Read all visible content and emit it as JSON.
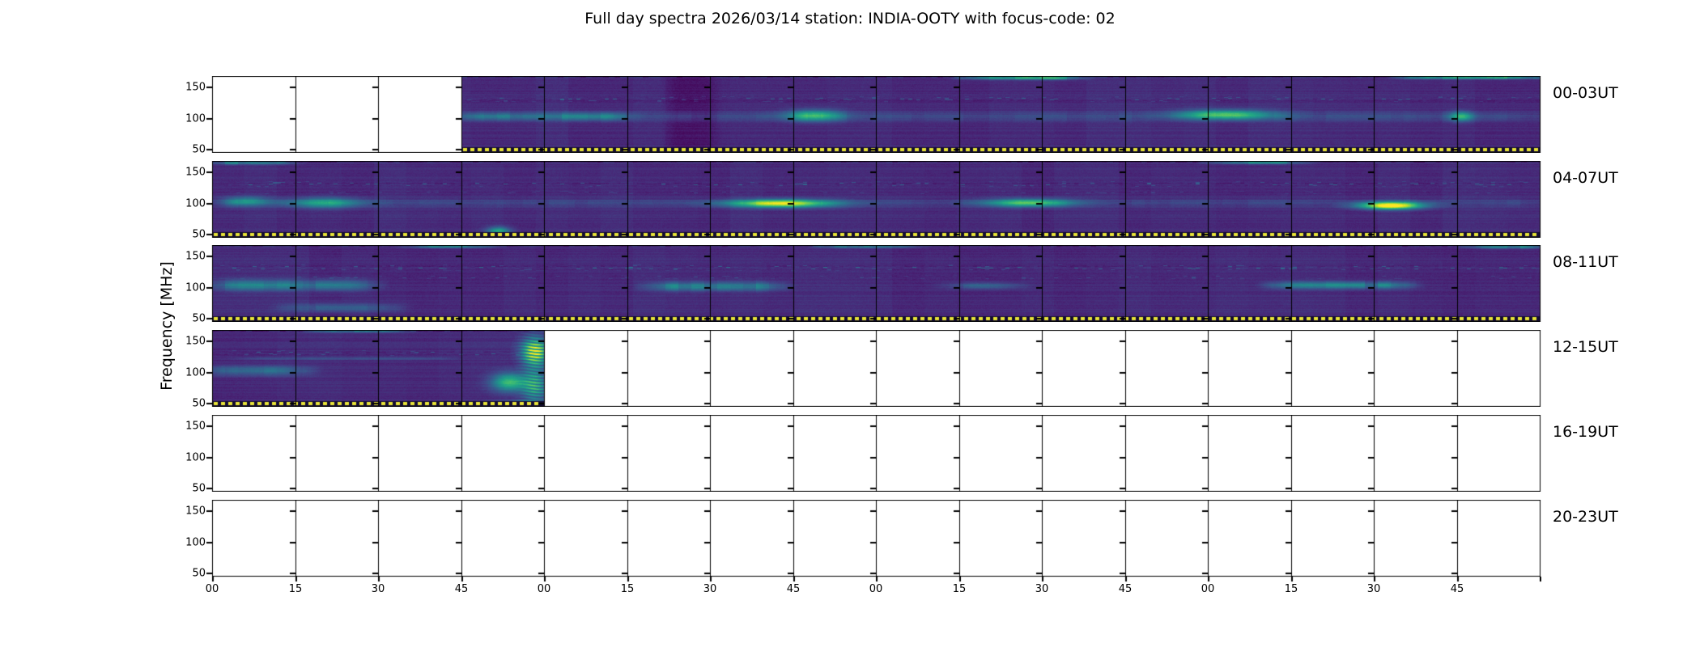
{
  "title": "Full day spectra 2026/03/14 station: INDIA-OOTY with focus-code: 02",
  "chart_data": {
    "type": "heatmap",
    "title": "Full day spectra 2026/03/14 station: INDIA-OOTY with focus-code: 02",
    "ylabel": "Frequency [MHz]",
    "ylim_mhz": [
      45,
      170
    ],
    "ytick_labels": [
      "150",
      "100",
      "50"
    ],
    "xtick_labels": [
      "00",
      "15",
      "30",
      "45",
      "00",
      "15",
      "30",
      "45",
      "00",
      "15",
      "30",
      "45",
      "00",
      "15",
      "30",
      "45"
    ],
    "segments_per_row": 16,
    "segment_minutes": 15,
    "colormap": "viridis",
    "no_data_color": "#ffffff",
    "grid_color": "#000000",
    "marker_line": {
      "style": "dotted",
      "color": "#e8e438",
      "background": "#140d33"
    },
    "rows": [
      {
        "label": "00-03UT",
        "seed": 11,
        "data": [
          3,
          16
        ],
        "features": [
          {
            "t": "hstripes",
            "x": [
              3,
              5
            ],
            "f": [
              45,
              170
            ],
            "a": 0.5
          },
          {
            "t": "dark",
            "x": [
              5.5,
              6.05
            ],
            "f": [
              45,
              170
            ],
            "a": -0.06
          },
          {
            "t": "sline",
            "x": [
              3,
              16
            ],
            "f": [
              126,
              138
            ],
            "a": 0.42
          },
          {
            "t": "band",
            "x": [
              3,
              16
            ],
            "f": [
              92,
              114
            ],
            "a": 0.16
          },
          {
            "t": "band",
            "x": [
              3,
              5
            ],
            "f": [
              95,
              112
            ],
            "a": 0.3
          },
          {
            "t": "blob",
            "x": [
              6.9,
              7.6
            ],
            "f": [
              95,
              115
            ],
            "a": 0.5
          },
          {
            "t": "blob",
            "x": [
              11.6,
              12.8
            ],
            "f": [
              98,
              115
            ],
            "a": 0.55
          },
          {
            "t": "blob",
            "x": [
              14.9,
              15.2
            ],
            "f": [
              95,
              112
            ],
            "a": 0.45
          },
          {
            "t": "band",
            "x": [
              9.1,
              10.4
            ],
            "f": [
              163,
              171
            ],
            "a": 0.75
          },
          {
            "t": "band",
            "x": [
              14.4,
              16
            ],
            "f": [
              164,
              171
            ],
            "a": 0.7
          },
          {
            "t": "hstripes",
            "x": [
              6,
              16
            ],
            "f": [
              45,
              170
            ],
            "a": 0.1
          }
        ]
      },
      {
        "label": "04-07UT",
        "seed": 22,
        "data": [
          0,
          16
        ],
        "features": [
          {
            "t": "sline",
            "x": [
              0,
              16
            ],
            "f": [
              126,
              138
            ],
            "a": 0.45
          },
          {
            "t": "sline",
            "x": [
              0,
              16
            ],
            "f": [
              114,
              122
            ],
            "a": 0.2
          },
          {
            "t": "band",
            "x": [
              0,
              16
            ],
            "f": [
              92,
              110
            ],
            "a": 0.14
          },
          {
            "t": "blob",
            "x": [
              0.1,
              0.7
            ],
            "f": [
              95,
              112
            ],
            "a": 0.35
          },
          {
            "t": "blob",
            "x": [
              0.9,
              1.8
            ],
            "f": [
              92,
              110
            ],
            "a": 0.42
          },
          {
            "t": "blob",
            "x": [
              6.2,
              7.5
            ],
            "f": [
              93,
              107
            ],
            "a": 0.8
          },
          {
            "t": "blob",
            "x": [
              9.3,
              10.4
            ],
            "f": [
              94,
              108
            ],
            "a": 0.55
          },
          {
            "t": "blob",
            "x": [
              13.8,
              14.6
            ],
            "f": [
              90,
              103
            ],
            "a": 0.95
          },
          {
            "t": "vstreak",
            "x": [
              2.5,
              3.6
            ],
            "f": [
              45,
              100
            ],
            "a": 0.3
          },
          {
            "t": "hstripes",
            "x": [
              0,
              16
            ],
            "f": [
              45,
              85
            ],
            "a": 0.1
          },
          {
            "t": "band",
            "x": [
              0,
              0.9
            ],
            "f": [
              163,
              171
            ],
            "a": 0.5
          },
          {
            "t": "band",
            "x": [
              12.1,
              13.1
            ],
            "f": [
              164,
              171
            ],
            "a": 0.5
          },
          {
            "t": "blob",
            "x": [
              3.3,
              3.6
            ],
            "f": [
              45,
              62
            ],
            "a": 0.5
          }
        ]
      },
      {
        "label": "08-11UT",
        "seed": 33,
        "data": [
          0,
          16
        ],
        "features": [
          {
            "t": "sline",
            "x": [
              0,
              16
            ],
            "f": [
              127,
              139
            ],
            "a": 0.5
          },
          {
            "t": "sline",
            "x": [
              0,
              16
            ],
            "f": [
              113,
              121
            ],
            "a": 0.26
          },
          {
            "t": "band",
            "x": [
              0,
              1.9
            ],
            "f": [
              92,
              116
            ],
            "a": 0.4
          },
          {
            "t": "band",
            "x": [
              5.3,
              6.8
            ],
            "f": [
              92,
              112
            ],
            "a": 0.45
          },
          {
            "t": "band",
            "x": [
              12.8,
              14.4
            ],
            "f": [
              96,
              112
            ],
            "a": 0.45
          },
          {
            "t": "band",
            "x": [
              8.9,
              9.7
            ],
            "f": [
              96,
              110
            ],
            "a": 0.28
          },
          {
            "t": "vstreak",
            "x": [
              4.1,
              6.3
            ],
            "f": [
              45,
              95
            ],
            "a": 0.32
          },
          {
            "t": "vstreak",
            "x": [
              8.4,
              9.8
            ],
            "f": [
              45,
              95
            ],
            "a": 0.28
          },
          {
            "t": "band",
            "x": [
              0.9,
              2.2
            ],
            "f": [
              58,
              76
            ],
            "a": 0.26
          },
          {
            "t": "hstripes",
            "x": [
              0,
              16
            ],
            "f": [
              45,
              170
            ],
            "a": 0.09
          },
          {
            "t": "band",
            "x": [
              2.4,
              3.3
            ],
            "f": [
              164,
              171
            ],
            "a": 0.45
          },
          {
            "t": "band",
            "x": [
              7.4,
              8.4
            ],
            "f": [
              164,
              171
            ],
            "a": 0.45
          },
          {
            "t": "band",
            "x": [
              15.2,
              16
            ],
            "f": [
              163,
              171
            ],
            "a": 0.5
          },
          {
            "t": "hstripes",
            "x": [
              14.9,
              16
            ],
            "f": [
              45,
              80
            ],
            "a": 0.2
          }
        ]
      },
      {
        "label": "12-15UT",
        "seed": 44,
        "data": [
          0,
          4
        ],
        "features": [
          {
            "t": "sline",
            "x": [
              0,
              4
            ],
            "f": [
              126,
              138
            ],
            "a": 0.45
          },
          {
            "t": "band",
            "x": [
              0,
              1.1
            ],
            "f": [
              92,
              114
            ],
            "a": 0.4
          },
          {
            "t": "vstreak",
            "x": [
              1.0,
              1.7
            ],
            "f": [
              45,
              95
            ],
            "a": 0.35
          },
          {
            "t": "hstripes",
            "x": [
              0,
              4
            ],
            "f": [
              45,
              170
            ],
            "a": 0.12
          },
          {
            "t": "blob",
            "x": [
              3.35,
              3.8
            ],
            "f": [
              68,
              100
            ],
            "a": 0.55
          },
          {
            "t": "blob",
            "x": [
              3.72,
              4.05
            ],
            "f": [
              110,
              158
            ],
            "a": 1.05,
            "wavy": true
          },
          {
            "t": "blob",
            "x": [
              3.72,
              4.05
            ],
            "f": [
              48,
              108
            ],
            "a": 0.6,
            "wavy": true
          },
          {
            "t": "band",
            "x": [
              3.5,
              4.0
            ],
            "f": [
              45,
              55
            ],
            "a": 0.7
          },
          {
            "t": "band",
            "x": [
              1.2,
              2.3
            ],
            "f": [
              165,
              171
            ],
            "a": 0.45
          },
          {
            "t": "band",
            "x": [
              0.3,
              2.8
            ],
            "f": [
              120,
              126
            ],
            "a": 0.18
          }
        ]
      },
      {
        "label": "16-19UT",
        "seed": 55,
        "data": null,
        "features": []
      },
      {
        "label": "20-23UT",
        "seed": 66,
        "data": null,
        "features": []
      }
    ]
  }
}
